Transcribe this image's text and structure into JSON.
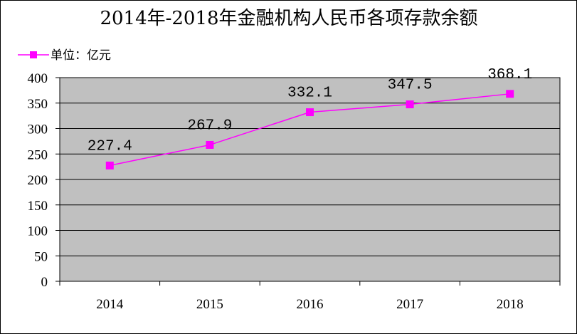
{
  "chart_data": {
    "type": "line",
    "title": "2014年-2018年金融机构人民币各项存款余额",
    "categories": [
      "2014",
      "2015",
      "2016",
      "2017",
      "2018"
    ],
    "series": [
      {
        "name": "单位：亿元",
        "values": [
          227.4,
          267.9,
          332.1,
          347.5,
          368.1
        ],
        "labels": [
          "227.4",
          "267.9",
          "332.1",
          "347.5",
          "368.1"
        ],
        "color": "#FF00FF"
      }
    ],
    "ylim": [
      0,
      400
    ],
    "yticks": [
      "0",
      "50",
      "100",
      "150",
      "200",
      "250",
      "300",
      "350",
      "400"
    ],
    "grid": true,
    "legend": "top-left",
    "plot_background": "#C0C0C0"
  }
}
